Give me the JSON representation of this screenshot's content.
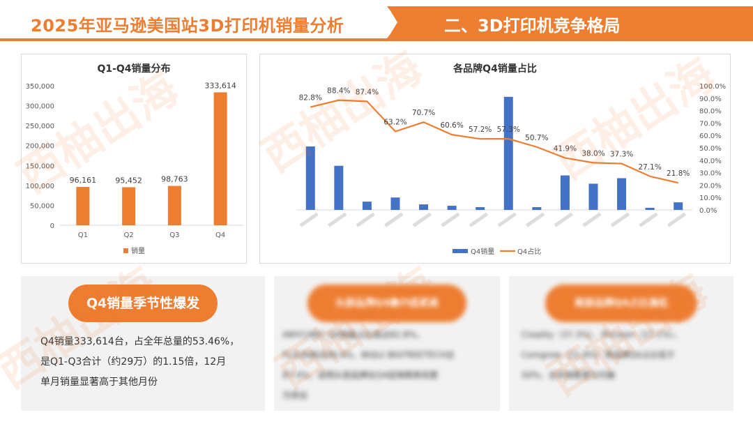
{
  "header": {
    "title": "2025年亚马逊美国站3D打印机销量分析",
    "section": "二、3D打印机竞争格局"
  },
  "colors": {
    "accent": "#ed7d31",
    "bar_blue": "#4472c4"
  },
  "chart_data": [
    {
      "type": "bar",
      "title": "Q1-Q4销量分布",
      "categories": [
        "Q1",
        "Q2",
        "Q3",
        "Q4"
      ],
      "series": [
        {
          "name": "销量",
          "values": [
            96161,
            95452,
            98763,
            333614
          ]
        }
      ],
      "data_labels": [
        "96,161",
        "95,452",
        "98,763",
        "333,614"
      ],
      "ylim": [
        0,
        350000
      ],
      "yticks": [
        "0",
        "50,000",
        "100,000",
        "150,000",
        "200,000",
        "250,000",
        "300,000",
        "350,000"
      ],
      "legend": "bottom",
      "color": "#ed7d31"
    },
    {
      "type": "bar+line",
      "title": "各品牌Q4销量占比",
      "categories": [
        "",
        "",
        "",
        "",
        "",
        "",
        "",
        "",
        "",
        "",
        "",
        "",
        "",
        ""
      ],
      "series": [
        {
          "name": "Q4销量",
          "type": "bar",
          "values": [
            46,
            32,
            6,
            9,
            4,
            3,
            2,
            82,
            2,
            25,
            19,
            23,
            1.5,
            5.5
          ]
        },
        {
          "name": "Q4占比",
          "type": "line",
          "values": [
            82.8,
            88.4,
            87.4,
            63.2,
            70.7,
            60.6,
            57.2,
            57.3,
            50.7,
            41.9,
            38.0,
            37.3,
            27.1,
            21.8
          ]
        }
      ],
      "line_labels": [
        "82.8%",
        "88.4%",
        "87.4%",
        "63.2%",
        "70.7%",
        "60.6%",
        "57.2%",
        "57.3%",
        "50.7%",
        "41.9%",
        "38.0%",
        "37.3%",
        "27.1%",
        "21.8%"
      ],
      "y2lim": [
        0,
        100
      ],
      "y2ticks": [
        "0.0%",
        "10.0%",
        "20.0%",
        "30.0%",
        "40.0%",
        "50.0%",
        "60.0%",
        "70.0%",
        "80.0%",
        "90.0%",
        "100.0%"
      ],
      "legend": "bottom"
    }
  ],
  "panels": [
    {
      "pill": "Q4销量季节性爆发",
      "lines": [
        "Q4销量333,614台，占全年总量的53.46%，",
        "是Q1-Q3合计（约29万）的1.15倍，12月",
        "单月销量显著高于其他月份"
      ]
    },
    {
      "pill": "头部品牌Q4集中度更高",
      "lines": [
        "ANYCUBIC Q4销量占比高达82.8%，",
        "FLSUN高达88.4%，BIQU/ BIGTREETECH达",
        "87.4%，说明头部品牌在Q4促销期表现更",
        "为突出"
      ]
    },
    {
      "pill": "尾部品牌Q4占比偏低",
      "lines": [
        "Creality（37.3%）、Phrozen（27.1%）、",
        "Comgrow（21.8%）等品牌Q4占比低于",
        "50%，全年销售更为均衡"
      ]
    }
  ],
  "watermark": "西柚出海"
}
